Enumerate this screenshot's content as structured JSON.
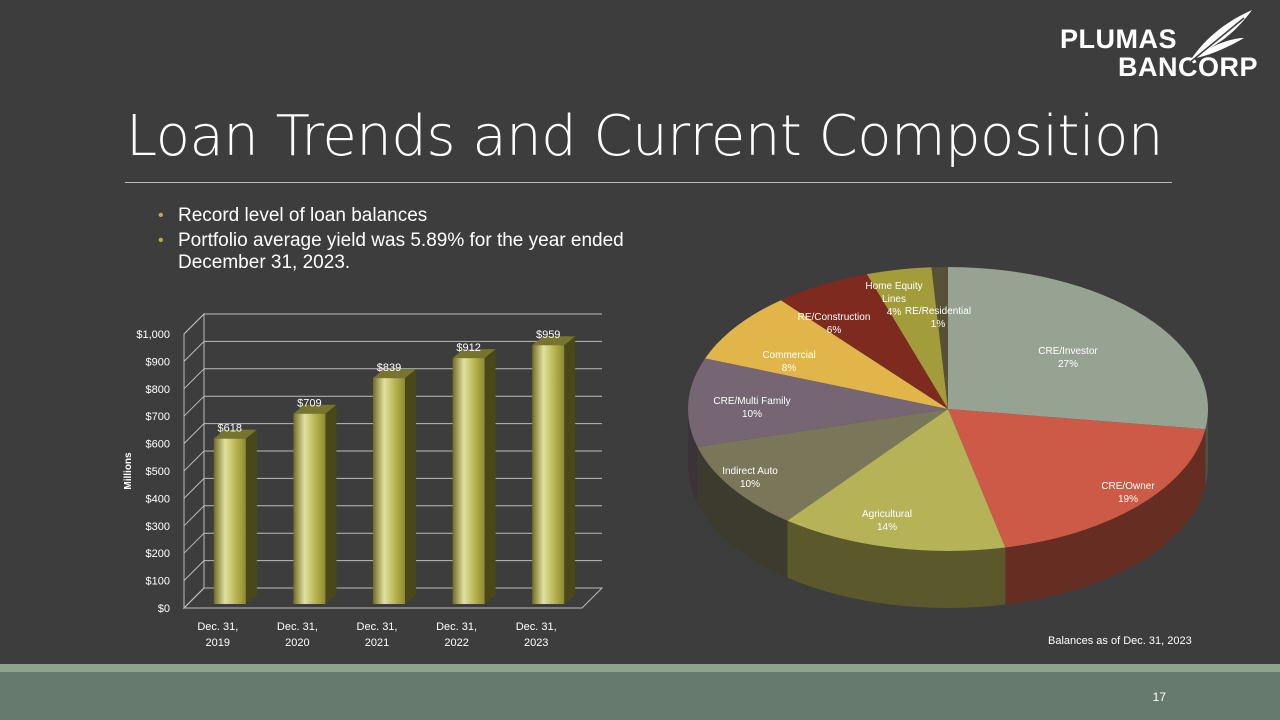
{
  "logo": {
    "line1": "PLUMAS",
    "line2": "BANCORP"
  },
  "title": "Loan Trends and Current Composition",
  "bullets": [
    "Record level of loan balances",
    "Portfolio average yield was 5.89% for the year ended December 31, 2023."
  ],
  "page_number": "17",
  "balances_note": "Balances as of  Dec. 31, 2023",
  "colors": {
    "background": "#3d3d3d",
    "bar_fill": "#b3b24d",
    "bullet": "#b6b04a",
    "footer": "#667a6d",
    "footer_line": "#8ea48d"
  },
  "chart_data": [
    {
      "type": "bar",
      "categories": [
        [
          "Dec. 31,",
          "2019"
        ],
        [
          "Dec. 31,",
          "2020"
        ],
        [
          "Dec. 31,",
          "2021"
        ],
        [
          "Dec. 31,",
          "2022"
        ],
        [
          "Dec. 31,",
          "2023"
        ]
      ],
      "values": [
        618,
        709,
        839,
        912,
        959
      ],
      "value_labels": [
        "$618",
        "$709",
        "$839",
        "$912",
        "$959"
      ],
      "ylabel": "Millions",
      "ylim": [
        0,
        1000
      ],
      "yticks": [
        "$0",
        "$100",
        "$200",
        "$300",
        "$400",
        "$500",
        "$600",
        "$700",
        "$800",
        "$900",
        "$1,000"
      ],
      "grid": true,
      "style": "3d"
    },
    {
      "type": "pie",
      "style": "3d",
      "slices": [
        {
          "label": "CRE/Investor",
          "pct_label": "27%",
          "value": 27,
          "color": "#97a392"
        },
        {
          "label": "CRE/Owner",
          "pct_label": "19%",
          "value": 19,
          "color": "#cc5a46"
        },
        {
          "label": "Agricultural",
          "pct_label": "14%",
          "value": 14,
          "color": "#b5b258"
        },
        {
          "label": "Indirect Auto",
          "pct_label": "10%",
          "value": 10,
          "color": "#7a7659"
        },
        {
          "label": "CRE/Multi Family",
          "pct_label": "10%",
          "value": 10,
          "color": "#766572"
        },
        {
          "label": "Commercial",
          "pct_label": "8%",
          "value": 8,
          "color": "#e2b54b"
        },
        {
          "label": "RE/Construction",
          "pct_label": "6%",
          "value": 6,
          "color": "#7e2a1f"
        },
        {
          "label": "Home Equity Lines",
          "pct_label": "4%",
          "value": 4,
          "color": "#a29c3a"
        },
        {
          "label": "RE/Residential",
          "pct_label": "1%",
          "value": 1,
          "color": "#585137"
        }
      ]
    }
  ]
}
